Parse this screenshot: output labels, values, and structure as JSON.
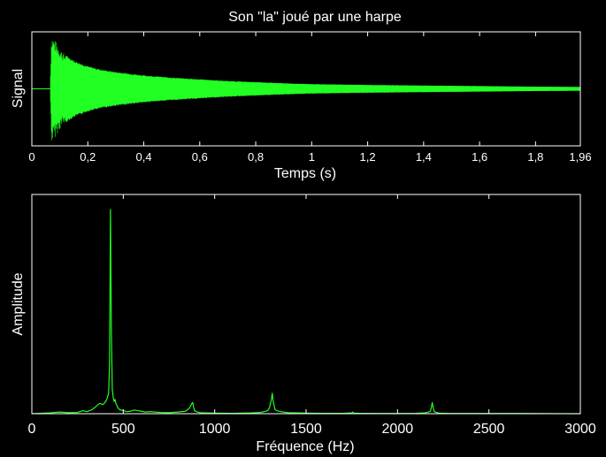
{
  "figure": {
    "background": "#000000",
    "axes_color": "#ffffff",
    "line_color": "#22ff22"
  },
  "chart_data": [
    {
      "type": "line",
      "title": "Son \"la\" joué par une harpe",
      "xlabel": "Temps (s)",
      "ylabel": "Signal",
      "xlim": [
        0,
        1.96
      ],
      "ylim": [
        -1,
        1
      ],
      "xticks": [
        0,
        0.2,
        0.4,
        0.6,
        0.8,
        1,
        1.2,
        1.4,
        1.6,
        1.8,
        1.96
      ],
      "xtick_labels": [
        "0",
        "0,2",
        "0,4",
        "0,6",
        "0,8",
        "1",
        "1,2",
        "1,4",
        "1,6",
        "1,8",
        "1,96"
      ],
      "y_tick_labels_shown": false,
      "grid": false,
      "series": [
        {
          "envelope": {
            "t": [
              0,
              0.065,
              0.07,
              0.08,
              0.09,
              0.1,
              0.12,
              0.15,
              0.2,
              0.25,
              0.3,
              0.4,
              0.5,
              0.6,
              0.7,
              0.8,
              0.9,
              1.0,
              1.2,
              1.4,
              1.6,
              1.8,
              1.96
            ],
            "amplitude": [
              0,
              0,
              0.95,
              0.88,
              0.8,
              0.72,
              0.6,
              0.5,
              0.4,
              0.34,
              0.3,
              0.24,
              0.2,
              0.17,
              0.14,
              0.12,
              0.1,
              0.085,
              0.07,
              0.06,
              0.05,
              0.04,
              0.035
            ]
          }
        }
      ]
    },
    {
      "type": "line",
      "title": "",
      "xlabel": "Fréquence (Hz)",
      "ylabel": "Amplitude",
      "xlim": [
        0,
        3000
      ],
      "ylim": [
        0,
        1
      ],
      "xticks": [
        0,
        500,
        1000,
        1500,
        2000,
        2500,
        3000
      ],
      "xtick_labels": [
        "0",
        "500",
        "1000",
        "1500",
        "2000",
        "2500",
        "3000"
      ],
      "y_tick_labels_shown": false,
      "grid": false,
      "series": [
        {
          "x": [
            0,
            100,
            150,
            200,
            250,
            280,
            300,
            330,
            350,
            370,
            390,
            400,
            410,
            420,
            425,
            430,
            435,
            440,
            445,
            450,
            455,
            460,
            470,
            480,
            500,
            520,
            540,
            560,
            580,
            600,
            620,
            650,
            700,
            750,
            800,
            840,
            860,
            870,
            875,
            880,
            885,
            890,
            900,
            920,
            950,
            1000,
            1100,
            1200,
            1250,
            1270,
            1290,
            1300,
            1310,
            1315,
            1320,
            1325,
            1330,
            1340,
            1360,
            1400,
            1500,
            1600,
            1700,
            1750,
            1755,
            1760,
            1800,
            1900,
            2000,
            2100,
            2150,
            2170,
            2180,
            2185,
            2190,
            2195,
            2200,
            2210,
            2230,
            2300,
            2500,
            2700,
            3000
          ],
          "y": [
            0,
            0.004,
            0.008,
            0.005,
            0.006,
            0.015,
            0.01,
            0.02,
            0.035,
            0.05,
            0.045,
            0.055,
            0.07,
            0.1,
            0.25,
            1.0,
            0.4,
            0.12,
            0.08,
            0.06,
            0.07,
            0.05,
            0.03,
            0.02,
            0.015,
            0.01,
            0.012,
            0.018,
            0.015,
            0.012,
            0.008,
            0.01,
            0.006,
            0.005,
            0.008,
            0.012,
            0.025,
            0.04,
            0.05,
            0.055,
            0.03,
            0.015,
            0.01,
            0.005,
            0.004,
            0.003,
            0.002,
            0.004,
            0.006,
            0.01,
            0.015,
            0.03,
            0.07,
            0.1,
            0.06,
            0.04,
            0.02,
            0.015,
            0.01,
            0.005,
            0.003,
            0.002,
            0.002,
            0.004,
            0.008,
            0.003,
            0.002,
            0.001,
            0.001,
            0.002,
            0.004,
            0.008,
            0.012,
            0.03,
            0.055,
            0.03,
            0.012,
            0.006,
            0.003,
            0.001,
            0.001,
            0.001,
            0
          ]
        }
      ]
    }
  ]
}
